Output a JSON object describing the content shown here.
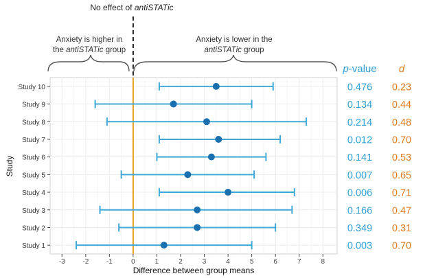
{
  "chart_data": {
    "type": "scatter",
    "subtype": "forest-plot",
    "title": "",
    "xlabel": "Difference between group means",
    "ylabel": "Study",
    "xlim": [
      -3.5,
      8.6
    ],
    "x_ticks": [
      -3,
      -2,
      -1,
      0,
      1,
      2,
      3,
      4,
      5,
      6,
      7,
      8
    ],
    "x_tick_labels": [
      "-3",
      "-2",
      "-1",
      "0",
      "1",
      "2",
      "3",
      "4",
      "5",
      "6",
      "7",
      "8"
    ],
    "grid": true,
    "reference_line": {
      "x": 0,
      "label_prefix": "No effect of ",
      "label_emph": "antiSTATic",
      "color": "#e8a020"
    },
    "annotations": {
      "left_brace": {
        "line1": "Anxiety is higher in",
        "line2_pre": "the ",
        "line2_emph": "antiSTATic",
        "line2_post": " group"
      },
      "right_brace": {
        "line1": "Anxiety is lower in the",
        "line2_emph": "antiSTATic",
        "line2_post": " group"
      }
    },
    "column_headers": {
      "p_prefix": "p",
      "p_suffix": "-value",
      "d": "d"
    },
    "colors": {
      "ci": "#3fa9d8",
      "point": "#1a6faf",
      "pvalue": "#2f9fd6",
      "d": "#e07a1f",
      "panel": "#ebebeb"
    },
    "studies": [
      {
        "label": "Study 10",
        "mean": 3.5,
        "lower": 1.1,
        "upper": 5.9,
        "p_value": "0.476",
        "d": "0.23"
      },
      {
        "label": "Study 9",
        "mean": 1.7,
        "lower": -1.6,
        "upper": 5.0,
        "p_value": "0.134",
        "d": "0.44"
      },
      {
        "label": "Study 8",
        "mean": 3.1,
        "lower": -1.1,
        "upper": 7.3,
        "p_value": "0.214",
        "d": "0.48"
      },
      {
        "label": "Study 7",
        "mean": 3.6,
        "lower": 1.1,
        "upper": 6.2,
        "p_value": "0.012",
        "d": "0.70"
      },
      {
        "label": "Study 6",
        "mean": 3.3,
        "lower": 1.0,
        "upper": 5.6,
        "p_value": "0.141",
        "d": "0.53"
      },
      {
        "label": "Study 5",
        "mean": 2.3,
        "lower": -0.5,
        "upper": 5.1,
        "p_value": "0.007",
        "d": "0.65"
      },
      {
        "label": "Study 4",
        "mean": 4.0,
        "lower": 1.1,
        "upper": 6.8,
        "p_value": "0.006",
        "d": "0.71"
      },
      {
        "label": "Study 3",
        "mean": 2.7,
        "lower": -1.4,
        "upper": 6.7,
        "p_value": "0.166",
        "d": "0.47"
      },
      {
        "label": "Study 2",
        "mean": 2.7,
        "lower": -0.6,
        "upper": 6.0,
        "p_value": "0.349",
        "d": "0.31"
      },
      {
        "label": "Study 1",
        "mean": 1.3,
        "lower": -2.4,
        "upper": 5.0,
        "p_value": "0.003",
        "d": "0.70"
      }
    ]
  }
}
